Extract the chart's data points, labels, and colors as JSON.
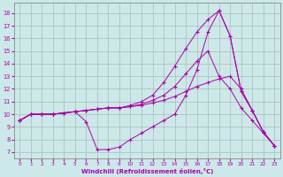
{
  "xlabel": "Windchill (Refroidissement éolien,°C)",
  "background_color": "#cce8e8",
  "line_color": "#aa00aa",
  "grid_color": "#aabbbb",
  "xlim": [
    -0.5,
    23.5
  ],
  "ylim": [
    6.5,
    18.8
  ],
  "xticks": [
    0,
    1,
    2,
    3,
    4,
    5,
    6,
    7,
    8,
    9,
    10,
    11,
    12,
    13,
    14,
    15,
    16,
    17,
    18,
    19,
    20,
    21,
    22,
    23
  ],
  "yticks": [
    7,
    8,
    9,
    10,
    11,
    12,
    13,
    14,
    15,
    16,
    17,
    18
  ],
  "curves": [
    {
      "x": [
        0,
        1,
        2,
        3,
        4,
        5,
        6,
        7,
        8,
        9,
        10,
        11,
        12,
        13,
        14,
        15,
        16,
        17,
        18,
        19,
        20,
        21,
        22,
        23
      ],
      "y": [
        9.5,
        10,
        10,
        10,
        10.1,
        10.2,
        9.4,
        7.2,
        7.2,
        7.4,
        8.0,
        8.5,
        9.0,
        9.5,
        10.0,
        11.5,
        13.5,
        16.5,
        18.2,
        16.2,
        11.8,
        10.3,
        8.6,
        7.5
      ]
    },
    {
      "x": [
        0,
        1,
        2,
        3,
        4,
        5,
        6,
        7,
        8,
        9,
        10,
        11,
        12,
        13,
        14,
        15,
        16,
        17,
        18,
        19,
        20,
        21,
        22,
        23
      ],
      "y": [
        9.5,
        10,
        10,
        10,
        10.1,
        10.2,
        10.3,
        10.4,
        10.5,
        10.5,
        10.6,
        10.7,
        10.9,
        11.1,
        11.4,
        11.8,
        12.2,
        12.5,
        12.8,
        13.0,
        12.0,
        10.3,
        8.6,
        7.5
      ]
    },
    {
      "x": [
        0,
        1,
        2,
        3,
        4,
        5,
        6,
        7,
        8,
        9,
        10,
        11,
        12,
        13,
        14,
        15,
        16,
        17,
        18,
        19,
        20,
        21,
        22,
        23
      ],
      "y": [
        9.5,
        10,
        10,
        10,
        10.1,
        10.2,
        10.3,
        10.4,
        10.5,
        10.5,
        10.6,
        10.8,
        11.1,
        11.5,
        12.2,
        13.2,
        14.2,
        15.0,
        13.0,
        12.0,
        10.5,
        9.5,
        8.5,
        7.5
      ]
    },
    {
      "x": [
        0,
        1,
        2,
        3,
        4,
        5,
        6,
        7,
        8,
        9,
        10,
        11,
        12,
        13,
        14,
        15,
        16,
        17,
        18,
        19,
        20,
        21,
        22,
        23
      ],
      "y": [
        9.5,
        10,
        10,
        10,
        10.1,
        10.2,
        10.3,
        10.4,
        10.5,
        10.5,
        10.7,
        11.0,
        11.5,
        12.5,
        13.8,
        15.2,
        16.5,
        17.5,
        18.2,
        16.2,
        11.8,
        10.3,
        8.6,
        7.5
      ]
    }
  ]
}
